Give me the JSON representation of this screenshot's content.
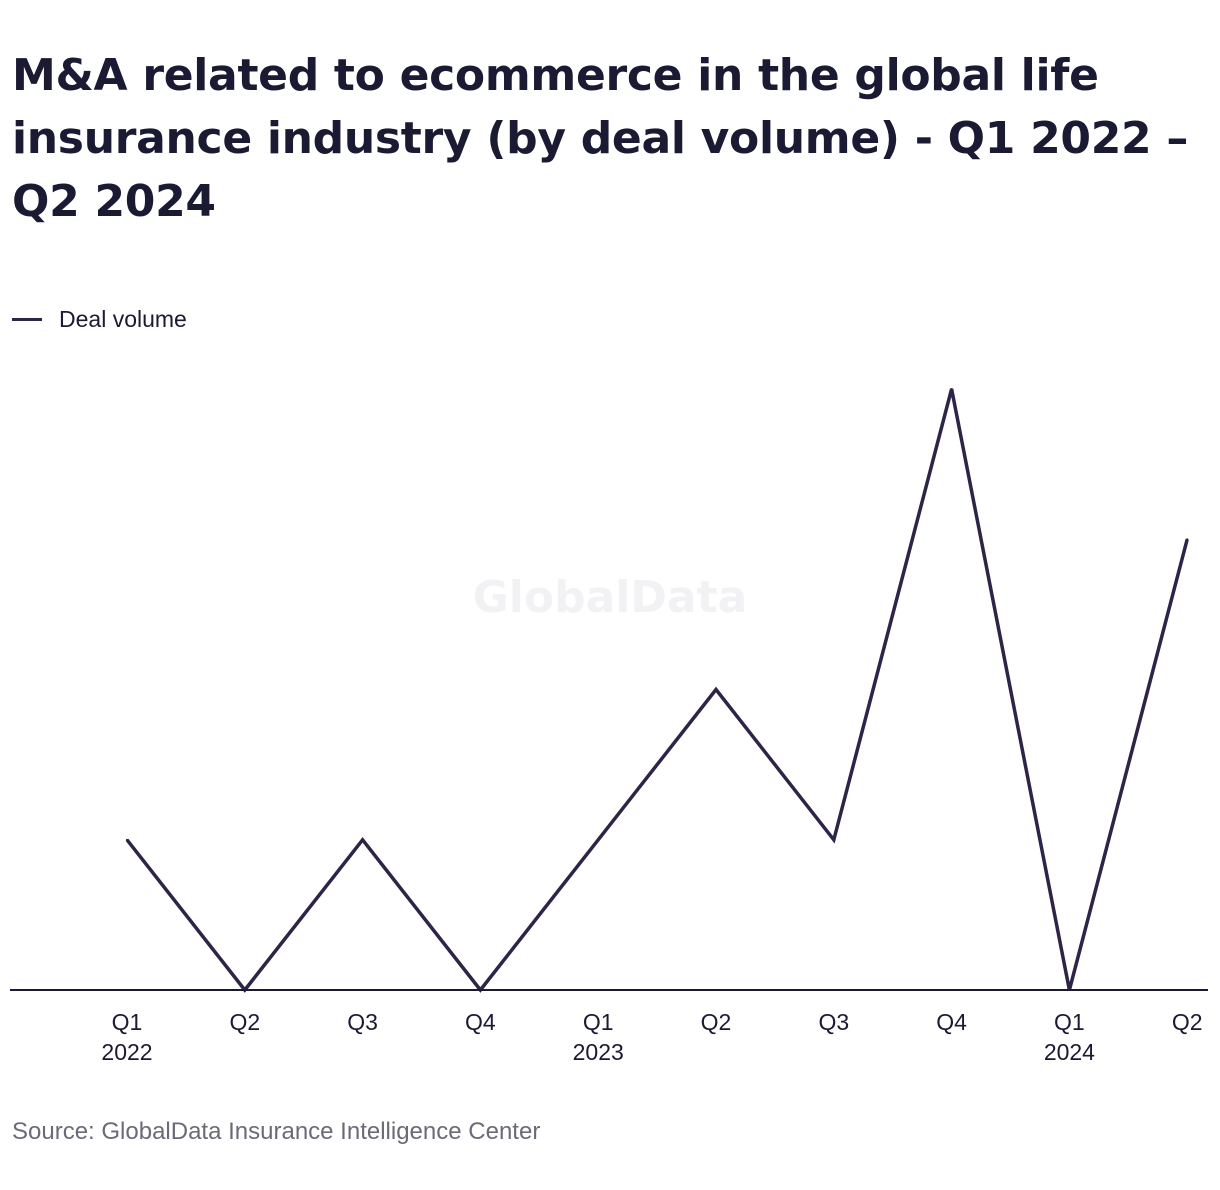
{
  "title": "M&A related to ecommerce in the global life insurance industry (by deal volume) - Q1 2022 – Q2 2024",
  "legend": {
    "series_label": "Deal volume"
  },
  "watermark": "GlobalData",
  "source": "Source: GlobalData Insurance Intelligence Center",
  "colors": {
    "line": "#2e2448",
    "axis": "#1b1a33",
    "text": "#1b1a33",
    "source": "#6b6b78",
    "watermark": "#f2f2f4"
  },
  "chart_data": {
    "type": "line",
    "title": "M&A related to ecommerce in the global life insurance industry (by deal volume) - Q1 2022 – Q2 2024",
    "xlabel": "",
    "ylabel": "",
    "categories": [
      "Q1 2022",
      "Q2 2022",
      "Q3 2022",
      "Q4 2022",
      "Q1 2023",
      "Q2 2023",
      "Q3 2023",
      "Q4 2023",
      "Q1 2024",
      "Q2 2024"
    ],
    "tick_labels": [
      {
        "quarter": "Q1",
        "year": "2022"
      },
      {
        "quarter": "Q2",
        "year": ""
      },
      {
        "quarter": "Q3",
        "year": ""
      },
      {
        "quarter": "Q4",
        "year": ""
      },
      {
        "quarter": "Q1",
        "year": "2023"
      },
      {
        "quarter": "Q2",
        "year": ""
      },
      {
        "quarter": "Q3",
        "year": ""
      },
      {
        "quarter": "Q4",
        "year": ""
      },
      {
        "quarter": "Q1",
        "year": "2024"
      },
      {
        "quarter": "Q2",
        "year": ""
      }
    ],
    "series": [
      {
        "name": "Deal volume",
        "values": [
          1,
          0,
          1,
          0,
          1,
          2,
          1,
          4,
          0,
          3
        ]
      }
    ],
    "ylim": [
      0,
      4
    ],
    "y_axis_visible": false,
    "grid": false,
    "legend_position": "top-left"
  }
}
